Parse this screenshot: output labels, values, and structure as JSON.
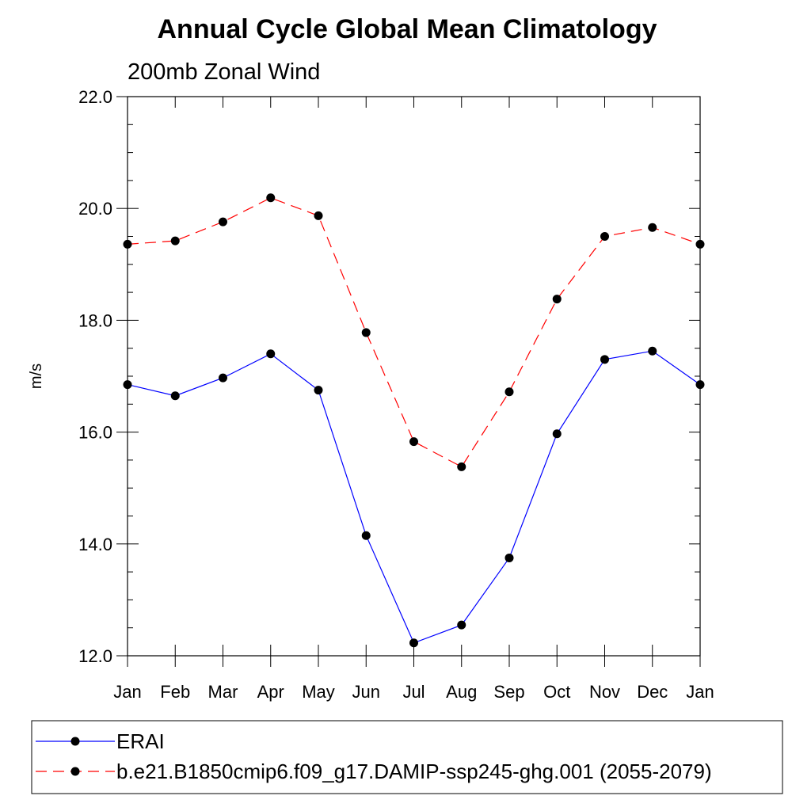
{
  "chart_data": {
    "type": "line",
    "title": "Annual Cycle Global Mean Climatology",
    "subtitle": "200mb Zonal Wind",
    "ylabel": "m/s",
    "xlabel": "",
    "ylim": [
      12,
      22
    ],
    "yticks": [
      "12.0",
      "14.0",
      "16.0",
      "18.0",
      "20.0",
      "22.0"
    ],
    "categories": [
      "Jan",
      "Feb",
      "Mar",
      "Apr",
      "May",
      "Jun",
      "Jul",
      "Aug",
      "Sep",
      "Oct",
      "Nov",
      "Dec",
      "Jan"
    ],
    "grid": false,
    "legend_position": "bottom",
    "series": [
      {
        "name": "ERAI",
        "color": "#0000ff",
        "line_style": "solid",
        "marker": "filled-circle",
        "values": [
          16.85,
          16.65,
          16.97,
          17.4,
          16.75,
          14.15,
          12.23,
          12.55,
          13.75,
          15.97,
          17.3,
          17.45,
          16.85
        ]
      },
      {
        "name": "b.e21.B1850cmip6.f09_g17.DAMIP-ssp245-ghg.001 (2055-2079)",
        "color": "#ff0000",
        "line_style": "dashed",
        "marker": "filled-circle",
        "values": [
          19.36,
          19.42,
          19.76,
          20.19,
          19.87,
          17.78,
          15.83,
          15.38,
          16.72,
          18.38,
          19.5,
          19.66,
          19.36
        ]
      }
    ]
  }
}
